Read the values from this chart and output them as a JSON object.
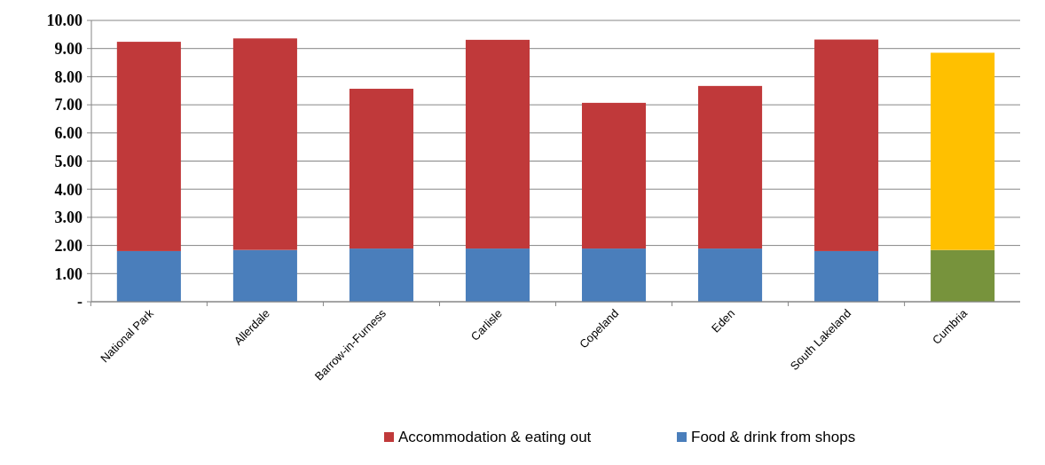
{
  "chart_data": {
    "type": "bar",
    "stacked": true,
    "categories": [
      "National Park",
      "Allerdale",
      "Barrow-in-Furness",
      "Carlisle",
      "Copeland",
      "Eden",
      "South Lakeland",
      "Cumbria"
    ],
    "series": [
      {
        "name": "Food & drink from shops",
        "color": "#4a7ebb",
        "colors": [
          "#4a7ebb",
          "#4a7ebb",
          "#4a7ebb",
          "#4a7ebb",
          "#4a7ebb",
          "#4a7ebb",
          "#4a7ebb",
          "#77933c"
        ],
        "values": [
          1.8,
          1.84,
          1.89,
          1.89,
          1.89,
          1.89,
          1.8,
          1.84
        ]
      },
      {
        "name": "Accommodation & eating out",
        "color": "#c0393a",
        "colors": [
          "#c0393a",
          "#c0393a",
          "#c0393a",
          "#c0393a",
          "#c0393a",
          "#c0393a",
          "#c0393a",
          "#ffc000"
        ],
        "values": [
          7.44,
          7.52,
          5.68,
          7.42,
          5.18,
          5.78,
          7.52,
          7.01
        ]
      }
    ],
    "ylim": [
      0,
      10
    ],
    "yticks": [
      {
        "value": 0,
        "label": "-"
      },
      {
        "value": 1,
        "label": "1.00"
      },
      {
        "value": 2,
        "label": "2.00"
      },
      {
        "value": 3,
        "label": "3.00"
      },
      {
        "value": 4,
        "label": "4.00"
      },
      {
        "value": 5,
        "label": "5.00"
      },
      {
        "value": 6,
        "label": "6.00"
      },
      {
        "value": 7,
        "label": "7.00"
      },
      {
        "value": 8,
        "label": "8.00"
      },
      {
        "value": 9,
        "label": "9.00"
      },
      {
        "value": 10,
        "label": "10.00"
      }
    ],
    "grid": "y",
    "legend": "bottom"
  }
}
